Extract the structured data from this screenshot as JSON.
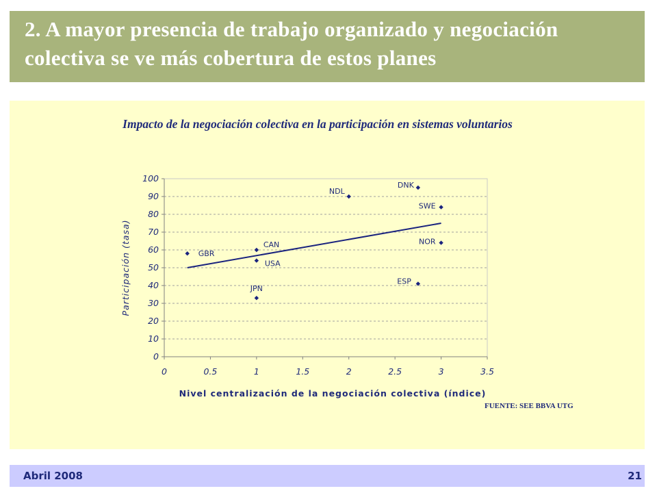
{
  "slide": {
    "title": "2. A mayor presencia de trabajo organizado y negociación colectiva se ve más cobertura de estos planes",
    "source": "FUENTE: SEE BBVA UTG",
    "footer_date": "Abril 2008",
    "page_number": "21"
  },
  "colors": {
    "header_bg": "#a8b47c",
    "panel_bg": "#ffffcc",
    "footer_bg": "#ccccff",
    "text_navy": "#1f2a7a"
  },
  "chart_data": {
    "type": "scatter",
    "title": "Impacto de la negociación colectiva en la participación en sistemas voluntarios",
    "xlabel": "Nivel centralización de la negociación colectiva (índice)",
    "ylabel": "Participación (tasa)",
    "xlim": [
      0,
      3.5
    ],
    "ylim": [
      0,
      100
    ],
    "x_ticks": [
      "0",
      "0.5",
      "1",
      "1.5",
      "2",
      "2.5",
      "3",
      "3.5"
    ],
    "y_ticks": [
      "0",
      "10",
      "20",
      "30",
      "40",
      "50",
      "60",
      "70",
      "80",
      "90",
      "100"
    ],
    "grid": "horizontal",
    "points": [
      {
        "label": "GBR",
        "x": 0.25,
        "y": 58
      },
      {
        "label": "CAN",
        "x": 1,
        "y": 60
      },
      {
        "label": "USA",
        "x": 1,
        "y": 54
      },
      {
        "label": "JPN",
        "x": 1,
        "y": 33
      },
      {
        "label": "NDL",
        "x": 2,
        "y": 90
      },
      {
        "label": "DNK",
        "x": 2.75,
        "y": 95
      },
      {
        "label": "ESP",
        "x": 2.75,
        "y": 41
      },
      {
        "label": "SWE",
        "x": 3,
        "y": 84
      },
      {
        "label": "NOR",
        "x": 3,
        "y": 64
      }
    ],
    "trendline": [
      [
        0.25,
        50
      ],
      [
        3,
        75
      ]
    ]
  }
}
